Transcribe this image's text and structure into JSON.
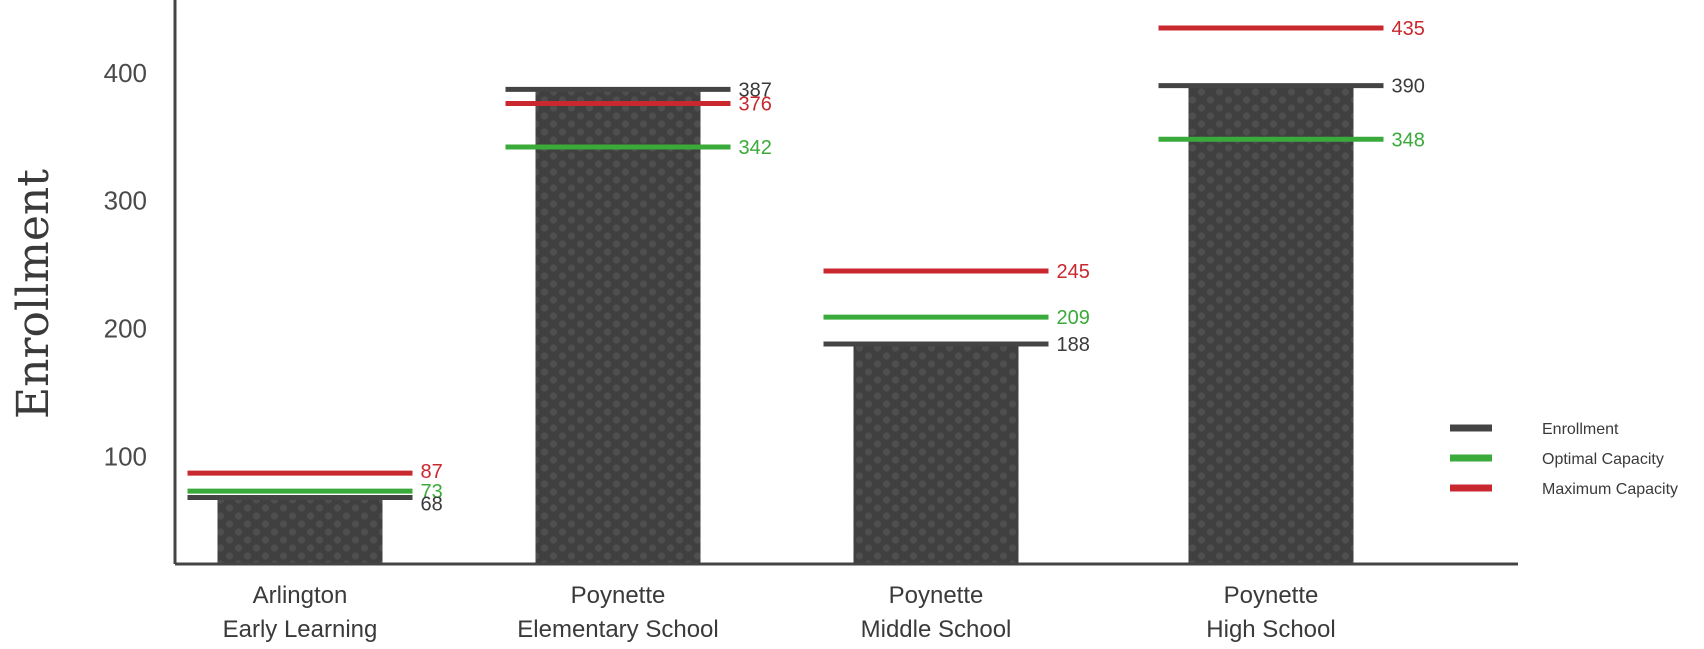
{
  "chart_data": {
    "type": "bar",
    "title": "",
    "xlabel": "",
    "ylabel": "Enrollment",
    "ylim": [
      16,
      435
    ],
    "yticks": [
      100,
      200,
      300,
      400
    ],
    "grid": false,
    "legend_position": "right",
    "categories": [
      [
        "Arlington",
        "Early Learning"
      ],
      [
        "Poynette",
        "Elementary School"
      ],
      [
        "Poynette",
        "Middle School"
      ],
      [
        "Poynette",
        "High School"
      ]
    ],
    "series": [
      {
        "name": "Enrollment",
        "color": "#444444",
        "values": [
          68,
          387,
          188,
          390
        ],
        "labels": [
          "68",
          "387",
          "188",
          "390"
        ]
      },
      {
        "name": "Optimal Capacity",
        "color": "#3aaa3a",
        "values": [
          73,
          342,
          209,
          348
        ],
        "labels": [
          "73",
          "342",
          "209",
          "348"
        ]
      },
      {
        "name": "Maximum Capacity",
        "color": "#c8282e",
        "values": [
          87,
          376,
          245,
          435
        ],
        "labels": [
          "87",
          "376",
          "245",
          "435"
        ]
      }
    ],
    "bar_color": "#444444"
  }
}
